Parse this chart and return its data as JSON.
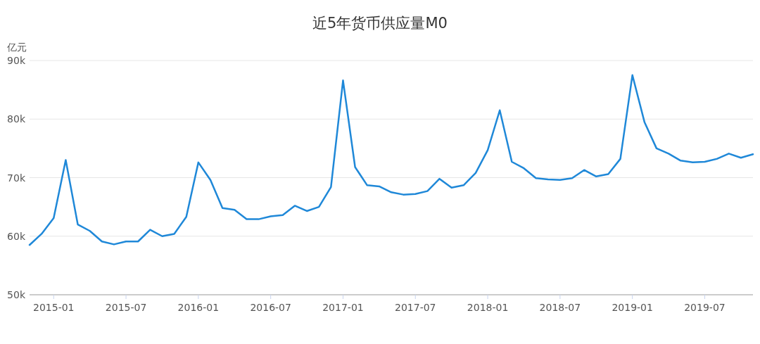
{
  "chart_data": {
    "type": "line",
    "title": "近5年货币供应量M0",
    "ylabel": "亿元",
    "x": [
      "2014-11",
      "2014-12",
      "2015-01",
      "2015-02",
      "2015-03",
      "2015-04",
      "2015-05",
      "2015-06",
      "2015-07",
      "2015-08",
      "2015-09",
      "2015-10",
      "2015-11",
      "2015-12",
      "2016-01",
      "2016-02",
      "2016-03",
      "2016-04",
      "2016-05",
      "2016-06",
      "2016-07",
      "2016-08",
      "2016-09",
      "2016-10",
      "2016-11",
      "2016-12",
      "2017-01",
      "2017-02",
      "2017-03",
      "2017-04",
      "2017-05",
      "2017-06",
      "2017-07",
      "2017-08",
      "2017-09",
      "2017-10",
      "2017-11",
      "2017-12",
      "2018-01",
      "2018-02",
      "2018-03",
      "2018-04",
      "2018-05",
      "2018-06",
      "2018-07",
      "2018-08",
      "2018-09",
      "2018-10",
      "2018-11",
      "2018-12",
      "2019-01",
      "2019-02",
      "2019-03",
      "2019-04",
      "2019-05",
      "2019-06",
      "2019-07",
      "2019-08",
      "2019-09",
      "2019-10",
      "2019-11"
    ],
    "series": [
      {
        "color": "#1f88d8",
        "values": [
          58500,
          60400,
          63100,
          73000,
          62000,
          60900,
          59100,
          58600,
          59100,
          59100,
          61100,
          60000,
          60400,
          63300,
          72600,
          69600,
          64800,
          64500,
          62900,
          62900,
          63400,
          63600,
          65200,
          64300,
          65000,
          68400,
          86600,
          71800,
          68700,
          68500,
          67500,
          67100,
          67200,
          67700,
          69800,
          68300,
          68700,
          70800,
          74700,
          81500,
          72700,
          71600,
          69900,
          69700,
          69600,
          69900,
          71300,
          70200,
          70600,
          73200,
          87500,
          79500,
          75000,
          74100,
          72900,
          72600,
          72700,
          73200,
          74100,
          73400,
          74000
        ]
      }
    ],
    "xlim": [
      "2014-11",
      "2019-11"
    ],
    "xticks": [
      "2015-01",
      "2015-07",
      "2016-01",
      "2016-07",
      "2017-01",
      "2017-07",
      "2018-01",
      "2018-07",
      "2019-01",
      "2019-07"
    ],
    "ylim": [
      50000,
      90000
    ],
    "yticks": [
      {
        "value": 50000,
        "label": "50k"
      },
      {
        "value": 60000,
        "label": "60k"
      },
      {
        "value": 70000,
        "label": "70k"
      },
      {
        "value": 80000,
        "label": "80k"
      },
      {
        "value": 90000,
        "label": "90k"
      }
    ],
    "grid": "y",
    "marker": "none",
    "line_style": "solid"
  }
}
